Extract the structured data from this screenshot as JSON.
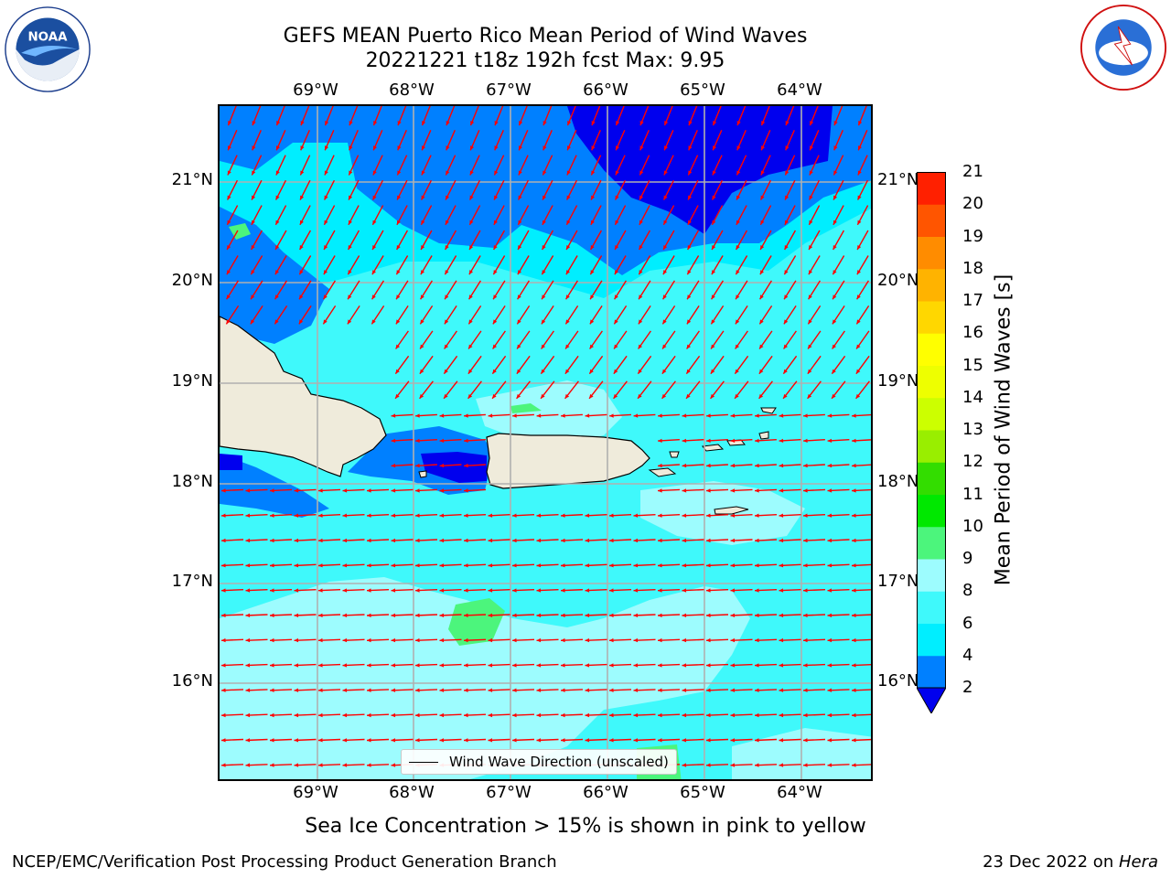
{
  "header": {
    "title_line1": "GEFS MEAN Puerto Rico Mean Period of Wind Waves",
    "title_line2": "20221221 t18z 192h fcst   Max: 9.95"
  },
  "map": {
    "lon_labels": [
      "69°W",
      "68°W",
      "67°W",
      "66°W",
      "65°W",
      "64°W"
    ],
    "lat_labels": [
      "21°N",
      "20°N",
      "19°N",
      "18°N",
      "17°N",
      "16°N"
    ],
    "extent": {
      "lon_min": -70.0,
      "lon_max": -63.25,
      "lat_min": 15.0,
      "lat_max": 21.75
    },
    "gridlines": true,
    "land_color": "#efebdb",
    "vector_color": "#ff0000",
    "legend_label": "Wind Wave Direction (unscaled)"
  },
  "colorbar": {
    "label": "Mean Period of Wind Waves [s]",
    "ticks": [
      "21",
      "20",
      "19",
      "18",
      "17",
      "16",
      "15",
      "14",
      "13",
      "12",
      "11",
      "10",
      "9",
      "8",
      "6",
      "4",
      "2"
    ],
    "levels": [
      2,
      4,
      6,
      8,
      9,
      10,
      11,
      12,
      13,
      14,
      15,
      16,
      17,
      18,
      19,
      20,
      21
    ],
    "colors": [
      "#0080ff",
      "#00eeff",
      "#3ff9fb",
      "#9dfcfe",
      "#4cf57c",
      "#00e800",
      "#33dd00",
      "#99ee00",
      "#ccff00",
      "#eeff00",
      "#ffff00",
      "#ffd700",
      "#ffb300",
      "#ff8c00",
      "#ff5500",
      "#ff2000"
    ],
    "under_color": "#0000ee"
  },
  "notes": {
    "sea_ice": "Sea Ice Concentration > 15% is shown in pink to yellow"
  },
  "footer": {
    "left": "NCEP/EMC/Verification Post Processing Product Generation Branch",
    "date": "23 Dec 2022 on ",
    "machine": "Hera"
  },
  "logos": {
    "left": "noaa-logo",
    "right": "nws-logo"
  }
}
